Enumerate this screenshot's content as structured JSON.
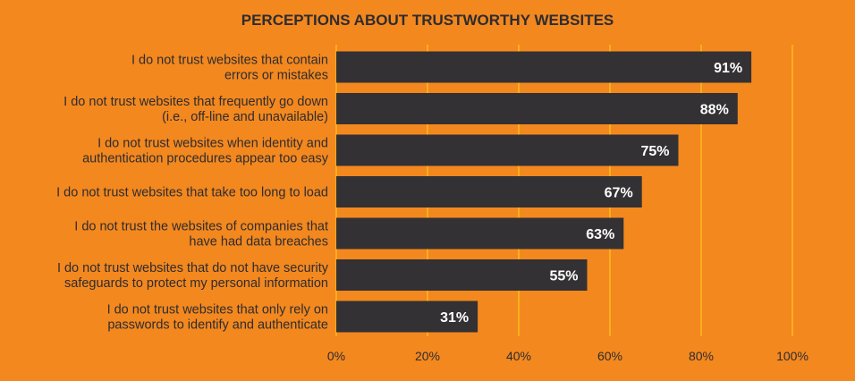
{
  "chart_data": {
    "type": "bar",
    "orientation": "horizontal",
    "title": "PERCEPTIONS ABOUT TRUSTWORTHY WEBSITES",
    "categories": [
      [
        "I do not trust websites that contain",
        "errors or mistakes"
      ],
      [
        "I do not trust websites that frequently go down",
        "(i.e., off-line and unavailable)"
      ],
      [
        "I do not trust websites when identity and",
        "authentication procedures appear too easy"
      ],
      [
        "I do not trust websites that take too long to load"
      ],
      [
        "I do not trust the websites of companies that",
        "have had data breaches"
      ],
      [
        "I do not trust websites that do not have security",
        "safeguards to protect my personal information"
      ],
      [
        "I do not trust websites that only rely on",
        "passwords to identify and authenticate"
      ]
    ],
    "values": [
      91,
      88,
      75,
      67,
      63,
      55,
      31
    ],
    "value_labels": [
      "91%",
      "88%",
      "75%",
      "67%",
      "63%",
      "55%",
      "31%"
    ],
    "xlim": [
      0,
      100
    ],
    "xticks": [
      0,
      20,
      40,
      60,
      80,
      100
    ],
    "xtick_labels": [
      "0%",
      "20%",
      "40%",
      "60%",
      "80%",
      "100%"
    ],
    "grid": true,
    "colors": {
      "background": "#F3881F",
      "bar": "#333133",
      "gridline": "#FFC21A",
      "text": "#2E2C2F",
      "value_label": "#FFFFFF"
    }
  }
}
